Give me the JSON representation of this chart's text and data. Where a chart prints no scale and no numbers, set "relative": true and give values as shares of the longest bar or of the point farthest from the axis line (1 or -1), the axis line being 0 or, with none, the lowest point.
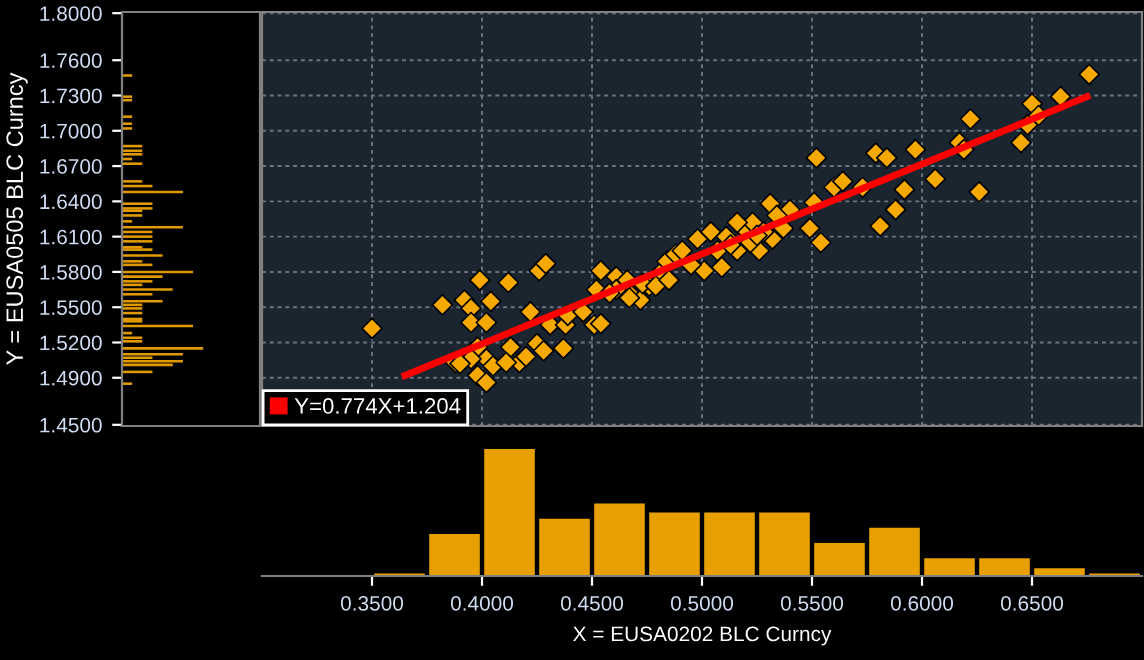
{
  "chart_data": [
    {
      "type": "bar",
      "orientation": "horizontal",
      "relative": true,
      "color": "#e09a00",
      "ylabel": "Y = EUSA0505 BLC Curncy",
      "tick_labels": "y",
      "ylim": [
        1.449,
        1.801
      ],
      "yticks": [
        {
          "value": 1.45,
          "label": "1.4500"
        },
        {
          "value": 1.49,
          "label": "1.4900"
        },
        {
          "value": 1.52,
          "label": "1.5200"
        },
        {
          "value": 1.55,
          "label": "1.5500"
        },
        {
          "value": 1.58,
          "label": "1.5800"
        },
        {
          "value": 1.61,
          "label": "1.6100"
        },
        {
          "value": 1.64,
          "label": "1.6400"
        },
        {
          "value": 1.67,
          "label": "1.6700"
        },
        {
          "value": 1.7,
          "label": "1.7000"
        },
        {
          "value": 1.73,
          "label": "1.7300"
        },
        {
          "value": 1.76,
          "label": "1.7600"
        },
        {
          "value": 1.8,
          "label": "1.8000"
        }
      ],
      "x": [
        1.747,
        1.729,
        1.726,
        1.712,
        1.706,
        1.702,
        1.687,
        1.683,
        1.68,
        1.676,
        1.672,
        1.657,
        1.653,
        1.648,
        1.638,
        1.634,
        1.632,
        1.628,
        1.623,
        1.618,
        1.614,
        1.61,
        1.606,
        1.601,
        1.599,
        1.594,
        1.589,
        1.586,
        1.58,
        1.576,
        1.572,
        1.569,
        1.565,
        1.561,
        1.555,
        1.552,
        1.549,
        1.545,
        1.54,
        1.538,
        1.534,
        1.528,
        1.524,
        1.521,
        1.515,
        1.51,
        1.507,
        1.504,
        1.501,
        1.495,
        1.485
      ],
      "values": [
        0.125,
        0.125,
        0.125,
        0.125,
        0.125,
        0.125,
        0.25,
        0.25,
        0.25,
        0.125,
        0.25,
        0.25,
        0.375,
        0.75,
        0.375,
        0.375,
        0.25,
        0.25,
        0.125,
        0.75,
        0.375,
        0.375,
        0.375,
        0.25,
        0.375,
        0.5,
        0.25,
        0.375,
        0.875,
        0.5,
        0.375,
        0.25,
        0.625,
        0.375,
        0.5,
        0.25,
        0.25,
        0.25,
        0.25,
        0.25,
        0.875,
        0.125,
        0.25,
        0.25,
        1,
        0.75,
        0.375,
        0.75,
        0.625,
        0.375,
        0.125
      ]
    },
    {
      "type": "scatter",
      "tick_labels": false,
      "grid": true,
      "legend": "bottom left",
      "marker": "diamond",
      "xlim": [
        0.3,
        0.7
      ],
      "ylim": [
        1.449,
        1.801
      ],
      "series": [
        {
          "type": "scatter",
          "color": "#f5a800",
          "x": [
            0.35,
            0.382,
            0.392,
            0.399,
            0.404,
            0.395,
            0.395,
            0.402,
            0.412,
            0.426,
            0.429,
            0.422,
            0.431,
            0.438,
            0.439,
            0.437,
            0.446,
            0.451,
            0.454,
            0.454,
            0.452,
            0.461,
            0.467,
            0.472,
            0.476,
            0.481,
            0.484,
            0.488,
            0.491,
            0.498,
            0.504,
            0.501,
            0.509,
            0.511,
            0.516,
            0.519,
            0.523,
            0.526,
            0.531,
            0.532,
            0.537,
            0.54,
            0.534,
            0.549,
            0.551,
            0.554,
            0.552,
            0.56,
            0.564,
            0.573,
            0.579,
            0.584,
            0.581,
            0.588,
            0.592,
            0.597,
            0.606,
            0.617,
            0.619,
            0.622,
            0.626,
            0.645,
            0.648,
            0.65,
            0.653,
            0.663,
            0.676,
            0.388,
            0.398,
            0.402,
            0.398,
            0.402,
            0.405,
            0.413,
            0.417,
            0.42,
            0.425,
            0.428,
            0.411,
            0.395,
            0.39,
            0.466,
            0.473,
            0.479,
            0.461,
            0.458,
            0.467,
            0.485,
            0.495,
            0.507,
            0.513,
            0.522,
            0.528,
            0.516,
            0.525
          ],
          "values": [
            1.532,
            1.552,
            1.556,
            1.573,
            1.555,
            1.549,
            1.537,
            1.537,
            1.571,
            1.581,
            1.587,
            1.546,
            1.535,
            1.535,
            1.543,
            1.515,
            1.546,
            1.535,
            1.536,
            1.581,
            1.565,
            1.576,
            1.562,
            1.556,
            1.568,
            1.579,
            1.589,
            1.595,
            1.598,
            1.608,
            1.614,
            1.581,
            1.584,
            1.61,
            1.598,
            1.617,
            1.622,
            1.598,
            1.638,
            1.608,
            1.617,
            1.633,
            1.628,
            1.617,
            1.639,
            1.605,
            1.677,
            1.652,
            1.657,
            1.652,
            1.681,
            1.677,
            1.619,
            1.633,
            1.65,
            1.684,
            1.659,
            1.69,
            1.684,
            1.71,
            1.648,
            1.69,
            1.705,
            1.723,
            1.713,
            1.729,
            1.748,
            1.503,
            1.516,
            1.506,
            1.492,
            1.486,
            1.5,
            1.516,
            1.503,
            1.508,
            1.519,
            1.513,
            1.503,
            1.506,
            1.502,
            1.573,
            1.57,
            1.568,
            1.565,
            1.562,
            1.558,
            1.573,
            1.586,
            1.598,
            1.603,
            1.605,
            1.614,
            1.622,
            1.611
          ]
        },
        {
          "type": "line",
          "name": "Y=0.774X+1.204",
          "color": "#ff0000",
          "marker": "none",
          "x": [
            0.365,
            0.675
          ],
          "values": [
            1.492,
            1.729
          ]
        }
      ]
    },
    {
      "type": "bar",
      "relative": true,
      "color": "#e8a000",
      "xlabel": "X = EUSA0202 BLC Curncy",
      "tick_labels": "x",
      "xlim": [
        0.3,
        0.7
      ],
      "xticks": [
        {
          "value": 0.35,
          "label": "0.3500"
        },
        {
          "value": 0.4,
          "label": "0.4000"
        },
        {
          "value": 0.45,
          "label": "0.4500"
        },
        {
          "value": 0.5,
          "label": "0.5000"
        },
        {
          "value": 0.55,
          "label": "0.5500"
        },
        {
          "value": 0.6,
          "label": "0.6000"
        },
        {
          "value": 0.65,
          "label": "0.6500"
        }
      ],
      "x": [
        0.3625,
        0.3875,
        0.4125,
        0.4375,
        0.4625,
        0.4875,
        0.5125,
        0.5375,
        0.5625,
        0.5875,
        0.6125,
        0.6375,
        0.6625,
        0.6875
      ],
      "values": [
        0.02,
        0.33,
        1,
        0.45,
        0.57,
        0.5,
        0.5,
        0.5,
        0.26,
        0.38,
        0.14,
        0.14,
        0.06,
        0.02
      ]
    }
  ]
}
